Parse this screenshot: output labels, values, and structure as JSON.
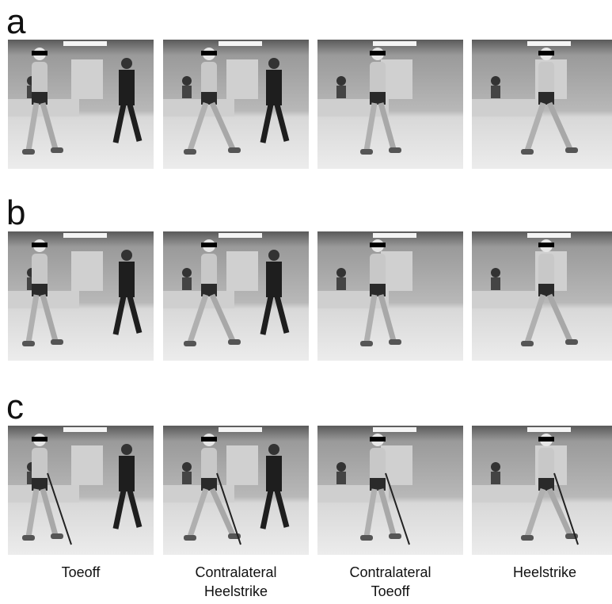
{
  "panels": [
    {
      "label": "a"
    },
    {
      "label": "b"
    },
    {
      "label": "c"
    }
  ],
  "captions": [
    [
      "Toeoff"
    ],
    [
      "Contralateral",
      "Heelstrike"
    ],
    [
      "Contralateral",
      "Toeoff"
    ],
    [
      "Heelstrike"
    ]
  ]
}
